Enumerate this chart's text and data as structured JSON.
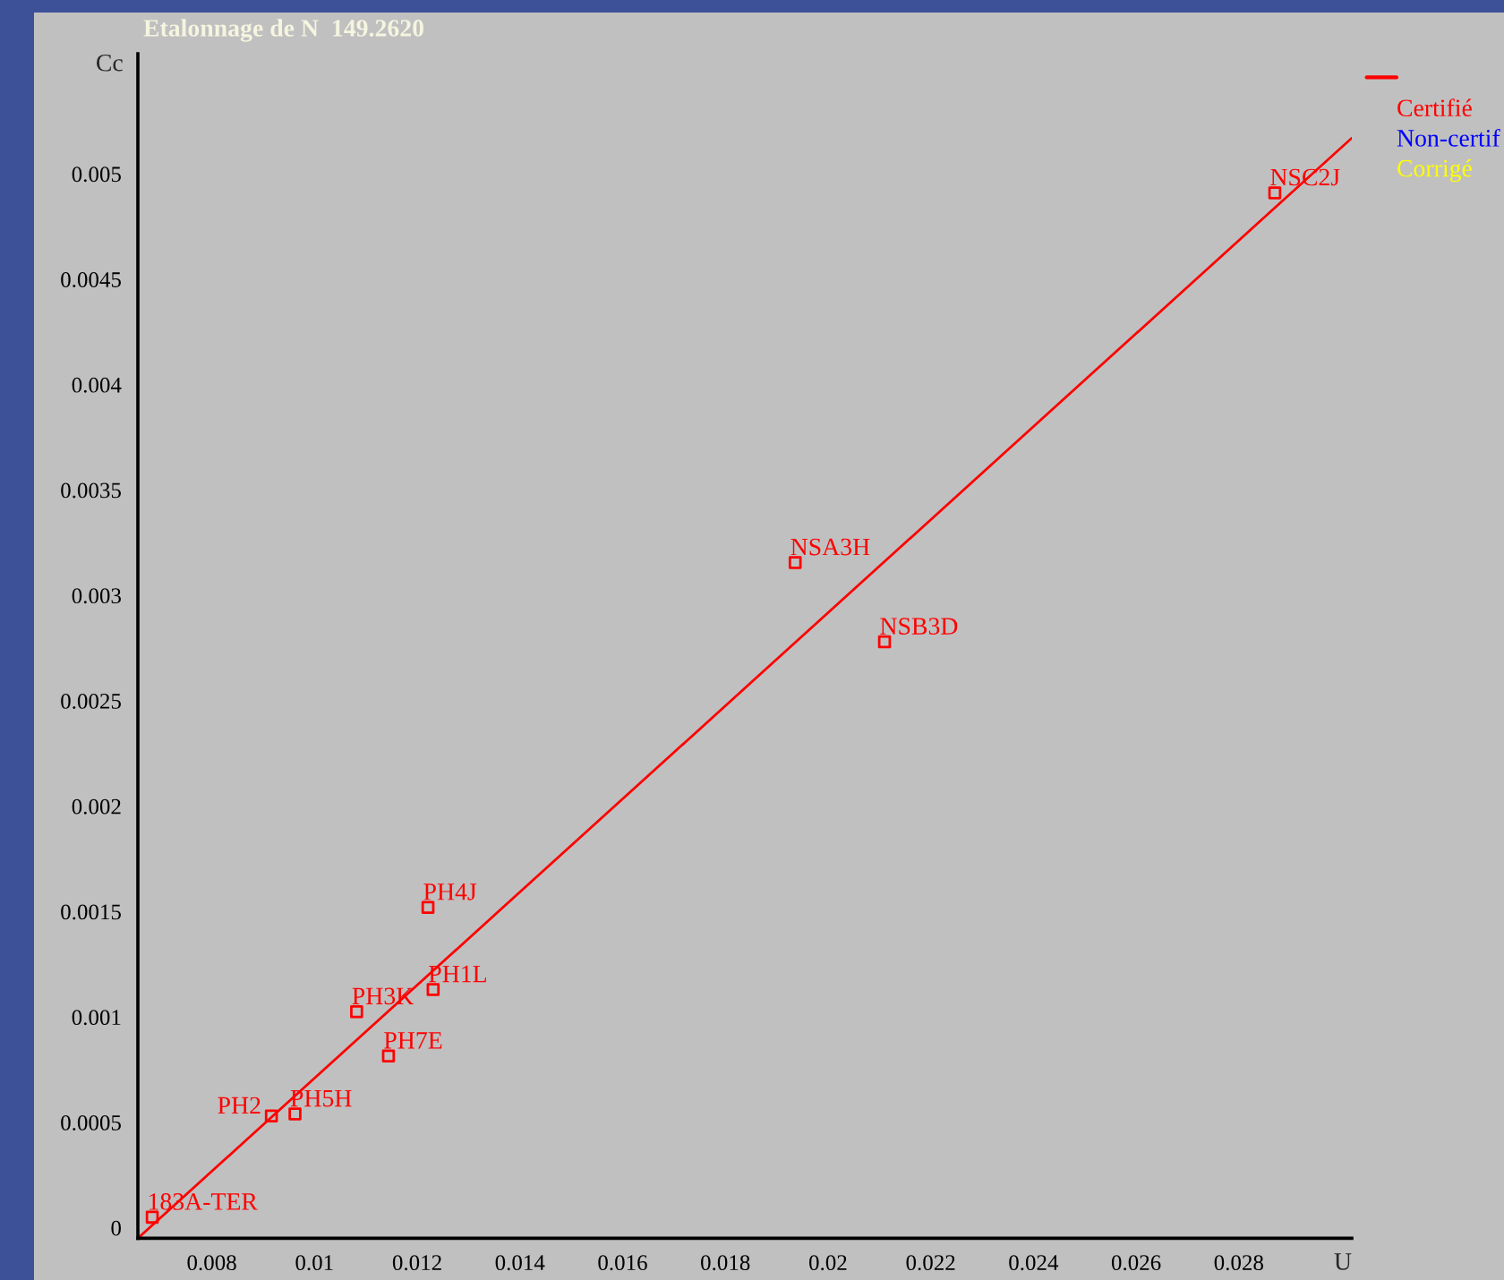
{
  "chart_data": {
    "type": "scatter",
    "title": "Etalonnage de N  149.2620",
    "xlabel": "U",
    "ylabel": "Cc",
    "xlim": [
      0.00656,
      0.0302
    ],
    "ylim": [
      -5e-05,
      0.00557
    ],
    "xticks": [
      0.008,
      0.01,
      0.012,
      0.014,
      0.016,
      0.018,
      0.02,
      0.022,
      0.024,
      0.026,
      0.028
    ],
    "yticks": [
      0,
      0.0005,
      0.001,
      0.0015,
      0.002,
      0.0025,
      0.003,
      0.0035,
      0.004,
      0.0045,
      0.005
    ],
    "grid": false,
    "legend": "top right",
    "series": [
      {
        "type": "line",
        "color": "#ff0000",
        "x": [
          0.00656,
          0.0302
        ],
        "values": [
          -5e-05,
          0.00517
        ]
      },
      {
        "name": "Certifié",
        "color": "#ff0000",
        "marker": "square",
        "x": [
          0.00684,
          0.00916,
          0.00962,
          0.01144,
          0.01082,
          0.01231,
          0.01221,
          0.01936,
          0.0211,
          0.0287
        ],
        "values": [
          5e-05,
          0.00053,
          0.00054,
          0.000815,
          0.001025,
          0.00113,
          0.00152,
          0.003156,
          0.00278,
          0.00491
        ]
      },
      {
        "type": "scatter",
        "name": "Non-certif",
        "color": "#0000ff"
      },
      {
        "type": "scatter",
        "name": "Corrigé",
        "color": "#ffff00"
      }
    ],
    "annotations": [
      {
        "text": "183A-TER",
        "x": 0.00684,
        "y": 5e-05
      },
      {
        "text": "PH2",
        "x": 0.00916,
        "y": 0.00053
      },
      {
        "text": "PH5H",
        "x": 0.00962,
        "y": 0.00054
      },
      {
        "text": "PH7E",
        "x": 0.01144,
        "y": 0.000815
      },
      {
        "text": "PH3K",
        "x": 0.01082,
        "y": 0.001025
      },
      {
        "text": "PH1L",
        "x": 0.01231,
        "y": 0.00113
      },
      {
        "text": "PH4J",
        "x": 0.01221,
        "y": 0.00152
      },
      {
        "text": "NSA3H",
        "x": 0.01936,
        "y": 0.003156
      },
      {
        "text": "NSB3D",
        "x": 0.0211,
        "y": 0.00278
      },
      {
        "text": "NSC2J",
        "x": 0.0287,
        "y": 0.00491
      }
    ]
  }
}
